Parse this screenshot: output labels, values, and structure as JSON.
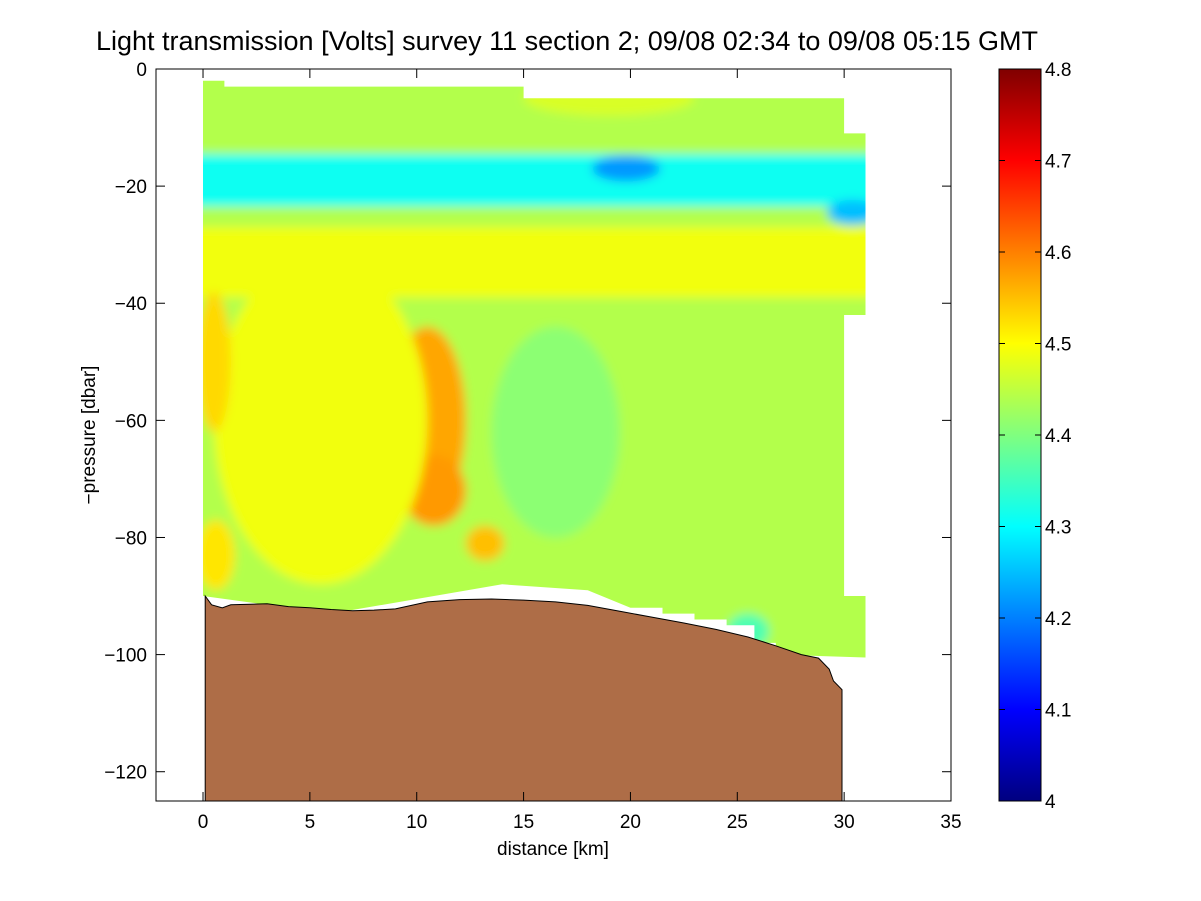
{
  "chart_data": {
    "type": "heatmap",
    "title": "Light transmission [Volts] survey 11 section 2; 09/08 02:34 to 09/08 05:15 GMT",
    "xlabel": "distance [km]",
    "ylabel": "−pressure [dbar]",
    "xlim": [
      -2.2,
      35
    ],
    "ylim": [
      -125,
      0
    ],
    "x_ticks": [
      0,
      5,
      10,
      15,
      20,
      25,
      30,
      35
    ],
    "x_tick_labels": [
      "0",
      "5",
      "10",
      "15",
      "20",
      "25",
      "30",
      "35"
    ],
    "y_ticks": [
      0,
      -20,
      -40,
      -60,
      -80,
      -100,
      -120
    ],
    "y_tick_labels": [
      "0",
      "−20",
      "−40",
      "−60",
      "−80",
      "−100",
      "−120"
    ],
    "colorbar": {
      "min": 4.0,
      "max": 4.8,
      "ticks": [
        4,
        4.1,
        4.2,
        4.3,
        4.4,
        4.5,
        4.6,
        4.7,
        4.8
      ],
      "tick_labels": [
        "4",
        "4.1",
        "4.2",
        "4.3",
        "4.4",
        "4.5",
        "4.6",
        "4.7",
        "4.8"
      ],
      "colormap": "jet"
    },
    "field": {
      "background_value": 4.44,
      "features": [
        {
          "kind": "band",
          "x": [
            0,
            31
          ],
          "y_center": -19,
          "y_halfwidth": 4.5,
          "value": 4.31
        },
        {
          "kind": "blob",
          "x": 19.8,
          "y": -17,
          "rx": 1.6,
          "ry": 2.2,
          "value": 4.22
        },
        {
          "kind": "blob",
          "x": 30.4,
          "y": -24.5,
          "rx": 1.2,
          "ry": 2.2,
          "value": 4.25
        },
        {
          "kind": "band",
          "x": [
            0,
            31
          ],
          "y_center": -33,
          "y_halfwidth": 6,
          "value": 4.49
        },
        {
          "kind": "blob",
          "x": 10.5,
          "y": -60,
          "rx": 1.8,
          "ry": 16,
          "value": 4.57
        },
        {
          "kind": "blob",
          "x": 10.8,
          "y": -72,
          "rx": 1.5,
          "ry": 6,
          "value": 4.58
        },
        {
          "kind": "blob",
          "x": 13.2,
          "y": -81,
          "rx": 0.9,
          "ry": 3,
          "value": 4.55
        },
        {
          "kind": "blob",
          "x": 5.5,
          "y": -60,
          "rx": 5,
          "ry": 28,
          "value": 4.49
        },
        {
          "kind": "blob",
          "x": 0.5,
          "y": -50,
          "rx": 0.8,
          "ry": 12,
          "value": 4.53
        },
        {
          "kind": "blob",
          "x": 0.6,
          "y": -83,
          "rx": 0.9,
          "ry": 6,
          "value": 4.52
        },
        {
          "kind": "blob",
          "x": 16.5,
          "y": -62,
          "rx": 3,
          "ry": 18,
          "value": 4.41
        },
        {
          "kind": "blob",
          "x": 25.5,
          "y": -96,
          "rx": 1,
          "ry": 3,
          "value": 4.36
        },
        {
          "kind": "blob",
          "x": 19,
          "y": -5,
          "rx": 4,
          "ry": 3,
          "value": 4.47
        }
      ]
    },
    "data_top_boundary": [
      [
        0,
        -2
      ],
      [
        1,
        -2
      ],
      [
        1,
        -3
      ],
      [
        15,
        -3
      ],
      [
        15,
        -5
      ],
      [
        30,
        -5
      ],
      [
        30,
        -11
      ],
      [
        31,
        -11
      ]
    ],
    "data_right_boundary": [
      [
        31,
        -11
      ],
      [
        31,
        -42
      ],
      [
        30,
        -42
      ],
      [
        30,
        -90
      ],
      [
        31,
        -90
      ],
      [
        31,
        -100.5
      ]
    ],
    "data_bottom_boundary": [
      [
        0,
        -90
      ],
      [
        6,
        -93
      ],
      [
        14,
        -88
      ],
      [
        18,
        -89
      ],
      [
        20,
        -92
      ],
      [
        21.5,
        -92
      ],
      [
        21.5,
        -93
      ],
      [
        23,
        -93
      ],
      [
        23,
        -94
      ],
      [
        24.5,
        -94
      ],
      [
        24.5,
        -95
      ],
      [
        25.8,
        -95
      ],
      [
        25.8,
        -98
      ],
      [
        26.8,
        -98
      ],
      [
        26.8,
        -100
      ],
      [
        31,
        -100.5
      ]
    ],
    "seabed": [
      [
        0.1,
        -90
      ],
      [
        0.4,
        -91.5
      ],
      [
        0.9,
        -92
      ],
      [
        1.3,
        -91.5
      ],
      [
        3,
        -91.3
      ],
      [
        4,
        -91.8
      ],
      [
        5,
        -92
      ],
      [
        6,
        -92.3
      ],
      [
        7,
        -92.5
      ],
      [
        8,
        -92.4
      ],
      [
        9,
        -92.2
      ],
      [
        10.5,
        -91
      ],
      [
        12,
        -90.6
      ],
      [
        13.5,
        -90.5
      ],
      [
        15,
        -90.7
      ],
      [
        16.5,
        -91
      ],
      [
        18,
        -91.6
      ],
      [
        19.5,
        -92.6
      ],
      [
        21,
        -93.6
      ],
      [
        22.5,
        -94.6
      ],
      [
        24,
        -95.7
      ],
      [
        25.5,
        -97
      ],
      [
        26.8,
        -98.5
      ],
      [
        28,
        -100
      ],
      [
        28.8,
        -100.6
      ],
      [
        29.3,
        -102.5
      ],
      [
        29.5,
        -104.5
      ],
      [
        29.9,
        -106
      ],
      [
        29.9,
        -125
      ],
      [
        0.1,
        -125
      ]
    ],
    "seabed_color": "#ae6d47"
  }
}
